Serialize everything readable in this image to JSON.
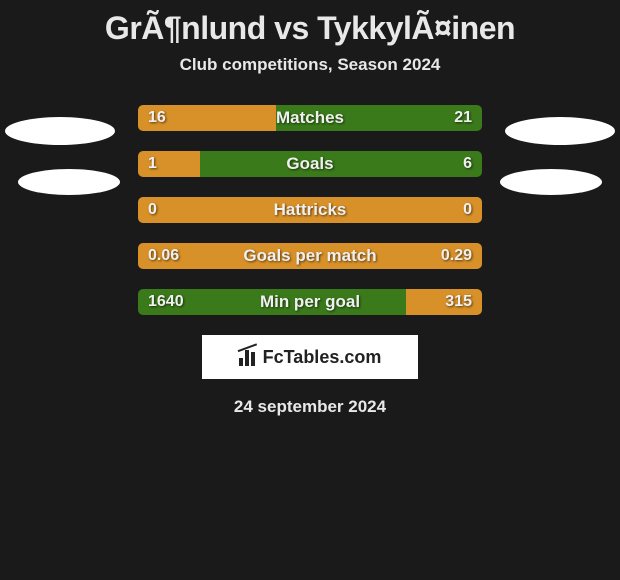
{
  "title": "GrÃ¶nlund vs TykkylÃ¤inen",
  "subtitle": "Club competitions, Season 2024",
  "date": "24 september 2024",
  "logo_text": "FcTables.com",
  "colors": {
    "background": "#1a1a1a",
    "bar_orange": "#d89028",
    "bar_green": "#3a7a1a",
    "text": "#e8e8e8",
    "photo_bg": "#ffffff"
  },
  "stats": [
    {
      "label": "Matches",
      "left_val": "16",
      "right_val": "21",
      "left_pct": 40,
      "right_pct": 0,
      "full_orange": false
    },
    {
      "label": "Goals",
      "left_val": "1",
      "right_val": "6",
      "left_pct": 18,
      "right_pct": 0,
      "full_orange": false
    },
    {
      "label": "Hattricks",
      "left_val": "0",
      "right_val": "0",
      "left_pct": 0,
      "right_pct": 0,
      "full_orange": true
    },
    {
      "label": "Goals per match",
      "left_val": "0.06",
      "right_val": "0.29",
      "left_pct": 0,
      "right_pct": 0,
      "full_orange": true
    },
    {
      "label": "Min per goal",
      "left_val": "1640",
      "right_val": "315",
      "left_pct": 0,
      "right_pct": 22,
      "full_orange": false
    }
  ]
}
